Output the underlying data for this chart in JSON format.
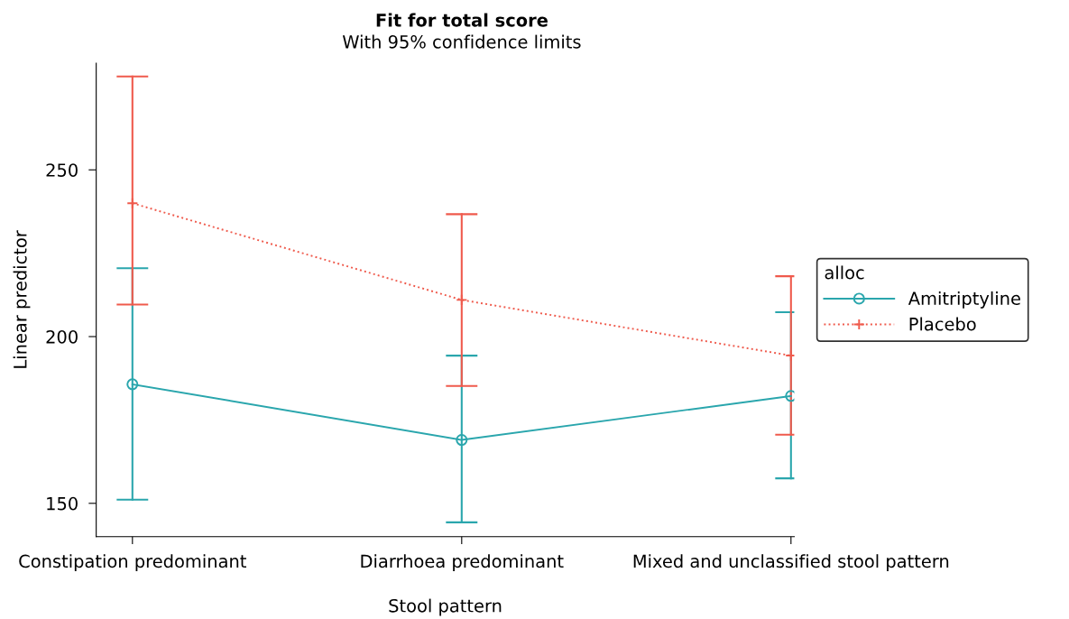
{
  "chart_data": {
    "type": "line",
    "title": "Fit for total score",
    "subtitle": "With 95% confidence limits",
    "xlabel": "Stool pattern",
    "ylabel": "Linear predictor",
    "categories": [
      "Constipation predominant",
      "Diarrhoea predominant",
      "Mixed and unclassified stool pattern"
    ],
    "series": [
      {
        "name": "Amitriptyline",
        "color": "#2aa6ad",
        "values": [
          185.7,
          169,
          182.2
        ],
        "errors": [
          [
            151.1,
            220.5
          ],
          [
            144.3,
            194.3
          ],
          [
            157.5,
            207.3
          ]
        ],
        "marker": "circle",
        "line_style": "solid"
      },
      {
        "name": "Placebo",
        "color": "#ef5a4c",
        "values": [
          240,
          211,
          194.3
        ],
        "errors": [
          [
            209.6,
            278
          ],
          [
            185.2,
            236.7
          ],
          [
            170.6,
            218.1
          ]
        ],
        "marker": "cross",
        "line_style": "dotted"
      }
    ],
    "ylim": [
      140,
      282
    ],
    "yticks": [
      150,
      200,
      250
    ],
    "grid": false,
    "legend": "right",
    "legend_title": "alloc"
  }
}
